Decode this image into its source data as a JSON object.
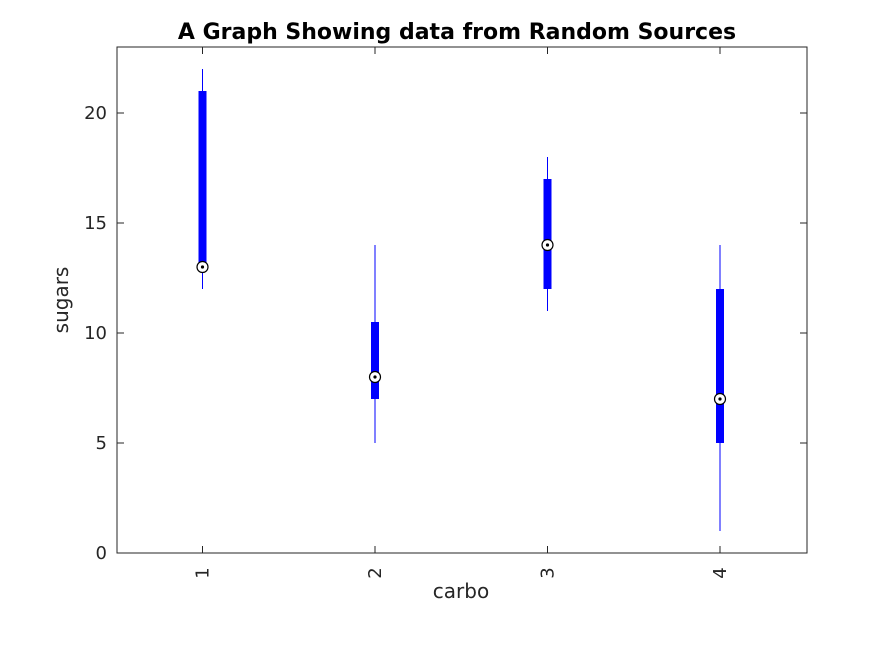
{
  "chart_data": {
    "type": "boxplot",
    "title": "A Graph Showing data from Random Sources",
    "xlabel": "carbo",
    "ylabel": "sugars",
    "categories": [
      "1",
      "2",
      "3",
      "4"
    ],
    "ylim": [
      0,
      23
    ],
    "yticks": [
      0,
      5,
      10,
      15,
      20
    ],
    "grid": false,
    "color": "#0000ff",
    "boxes": [
      {
        "category": "1",
        "whisker_low": 12,
        "q1": 13,
        "median": 13,
        "q3": 21,
        "whisker_high": 22
      },
      {
        "category": "2",
        "whisker_low": 5,
        "q1": 7,
        "median": 8,
        "q3": 10.5,
        "whisker_high": 14
      },
      {
        "category": "3",
        "whisker_low": 11,
        "q1": 12,
        "median": 14,
        "q3": 17,
        "whisker_high": 18
      },
      {
        "category": "4",
        "whisker_low": 1,
        "q1": 5,
        "median": 7,
        "q3": 12,
        "whisker_high": 14
      }
    ]
  }
}
